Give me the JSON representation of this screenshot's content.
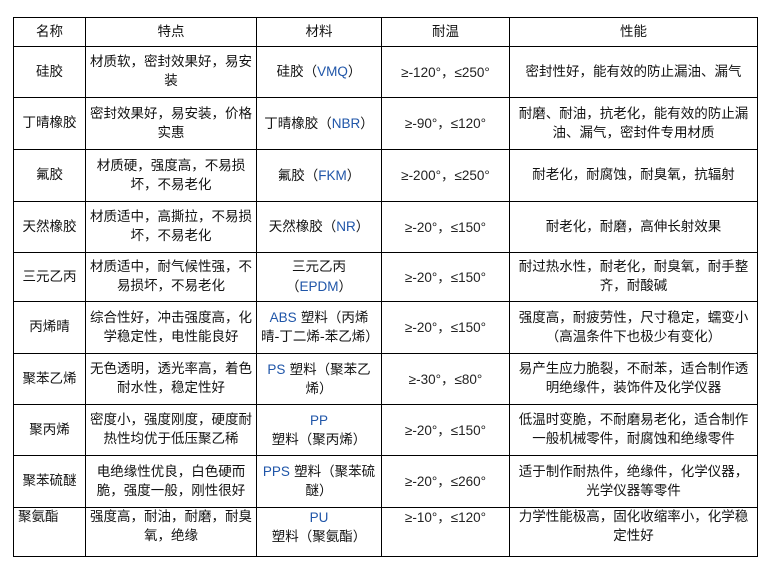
{
  "headers": [
    "名称",
    "特点",
    "材料",
    "耐温",
    "性能"
  ],
  "accent_color": "#1f55a8",
  "rows": [
    {
      "name": "硅胶",
      "features": "材质软，密封效果好，易安装",
      "material": {
        "pre": "硅胶（",
        "code": "VMQ",
        "post": "）"
      },
      "temp": "≥-120°，≤250°",
      "performance": "密封性好，能有效的防止漏油、漏气"
    },
    {
      "name": "丁晴橡胶",
      "features": "密封效果好，易安装，价格实惠",
      "material": {
        "pre": "丁晴橡胶（",
        "code": "NBR",
        "post": "）"
      },
      "temp": "≥-90°，≤120°",
      "performance": "耐磨、耐油，抗老化，能有效的防止漏油、漏气，密封件专用材质"
    },
    {
      "name": "氟胶",
      "features": "材质硬，强度高，不易损坏，不易老化",
      "material": {
        "pre": "氟胶（",
        "code": "FKM",
        "post": "）"
      },
      "temp": "≥-200°，≤250°",
      "performance": "耐老化，耐腐蚀，耐臭氧，抗辐射"
    },
    {
      "name": "天然橡胶",
      "features": "材质适中，高撕拉，不易损坏，不易老化",
      "material": {
        "pre": "天然橡胶（",
        "code": "NR",
        "post": "）"
      },
      "temp": "≥-20°，≤150°",
      "performance": "耐老化，耐磨，高伸长射效果"
    },
    {
      "name": "三元乙丙",
      "features": "材质适中，耐气候性强，不易损坏，不易老化",
      "material": {
        "pre": "三元乙丙（",
        "code": "EPDM",
        "post": "）"
      },
      "temp": "≥-20°，≤150°",
      "performance": "耐过热水性，耐老化，耐臭氧，耐手整齐，耐酸碱"
    },
    {
      "name": "丙烯晴",
      "features": "综合性好，冲击强度高，化学稳定性，电性能良好",
      "material": {
        "pre": "",
        "code": "ABS",
        "post": " 塑料（丙烯晴-丁二烯-苯乙烯）"
      },
      "temp": "≥-20°，≤150°",
      "performance": "强度高，耐疲劳性，尺寸稳定，蠕变小（高温条件下也极少有变化）"
    },
    {
      "name": "聚苯乙烯",
      "features": "无色透明，透光率高，着色耐水性，稳定性好",
      "material": {
        "pre": "",
        "code": "PS",
        "post": " 塑料（聚苯乙烯）"
      },
      "temp": "≥-30°，≤80°",
      "performance": "易产生应力脆裂，不耐苯，适合制作透明绝缘件，装饰件及化学仪器"
    },
    {
      "name": "聚丙烯",
      "features": "密度小，强度刚度，硬度耐热性均优于低压聚乙稀",
      "material": {
        "pre": "",
        "code": "PP",
        "post": " 塑料（聚丙烯）"
      },
      "temp": "≥-20°，≤150°",
      "performance": "低温时变脆，不耐磨易老化，适合制作一般机械零件，耐腐蚀和绝缘零件"
    },
    {
      "name": "聚苯硫醚",
      "features": "电绝缘性优良，白色硬而脆，强度一般，刚性很好",
      "material": {
        "pre": "",
        "code": "PPS",
        "post": " 塑料（聚苯硫醚）"
      },
      "temp": "≥-20°，≤260°",
      "performance": "适于制作耐热件，绝缘件，化学仪器，光学仪器等零件"
    },
    {
      "name": "聚氨酯",
      "features": "强度高，耐油，耐磨，耐臭氧，绝缘",
      "material": {
        "pre": "",
        "code": "PU",
        "post": " 塑料（聚氨酯）"
      },
      "temp": "≥-10°，≤120°",
      "performance": "力学性能极高，固化收缩率小，化学稳定性好"
    }
  ]
}
